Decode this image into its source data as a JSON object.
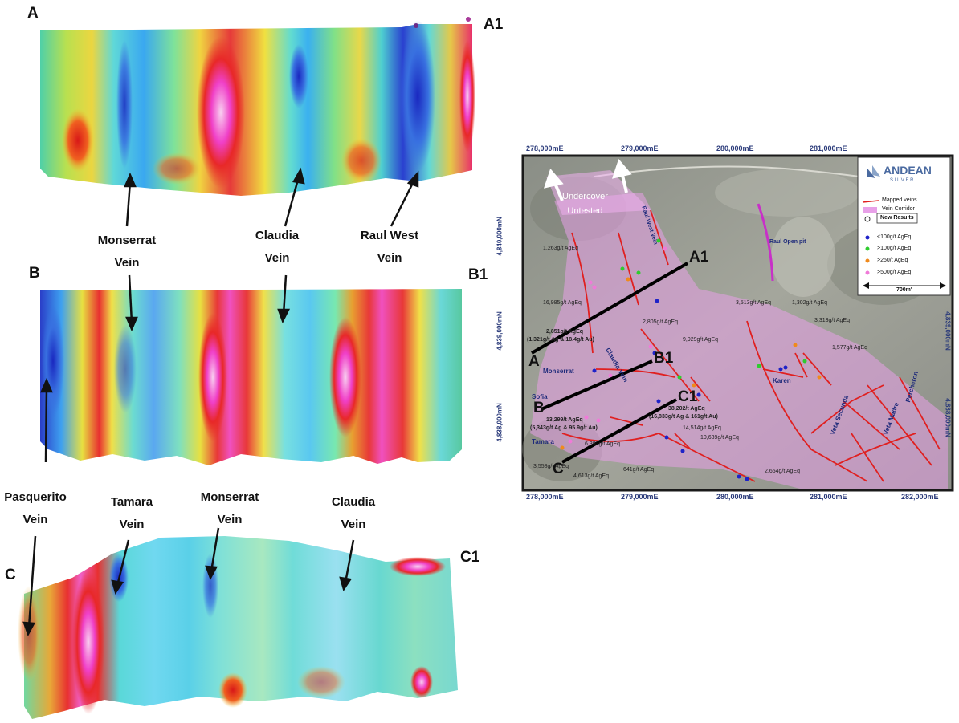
{
  "sections": {
    "A": {
      "start": "A",
      "end": "A1"
    },
    "B": {
      "start": "B",
      "end": "B1"
    },
    "C": {
      "start": "C",
      "end": "C1"
    }
  },
  "vein_labels": {
    "monserrat_a": [
      "Monserrat",
      "Vein"
    ],
    "claudia_a": [
      "Claudia",
      "Vein"
    ],
    "raul_west_a": [
      "Raul West",
      "Vein"
    ],
    "pasquerito_c": [
      "Pasquerito",
      "Vein"
    ],
    "tamara_c": [
      "Tamara",
      "Vein"
    ],
    "monserrat_c": [
      "Monserrat",
      "Vein"
    ],
    "claudia_c": [
      "Claudia",
      "Vein"
    ]
  },
  "map": {
    "logo_main": "ANDEAN",
    "logo_sub": "S I L V E R",
    "top_eastings": [
      "278,000mE",
      "279,000mE",
      "280,000mE",
      "281,000mE"
    ],
    "bottom_eastings": [
      "278,000mE",
      "279,000mE",
      "280,000mE",
      "281,000mE",
      "282,000mE"
    ],
    "left_northings": [
      "4,840,000mN",
      "4,839,000mN",
      "4,838,000mN"
    ],
    "right_northings": [
      "4,839,000mN",
      "4,838,000mN"
    ],
    "undercover": [
      "Undercover",
      "Untested"
    ],
    "legend": {
      "mapped_veins": "Mapped veins",
      "vein_corridor": "Vein Corridor",
      "new_results": "New Results",
      "items": [
        {
          "label": "<100g/t AgEq",
          "color": "#1e22c8"
        },
        {
          "label": ">100g/t AgEq",
          "color": "#2ecc2e"
        },
        {
          "label": ">250/t AgEq",
          "color": "#f08a1c"
        },
        {
          "label": ">500g/t AgEq",
          "color": "#f07ad8"
        }
      ],
      "scale": "700m'"
    },
    "names": {
      "raul_west": "Raul West Vein",
      "raul_pit": "Raul Open pit",
      "monserrat": "Monserrat",
      "claudia": "Claudia Vein",
      "sofia": "Sofia",
      "tamara": "Tamara",
      "karen": "Karen",
      "veta_secunda": "Veta Secunda",
      "veta_madre": "Veta Madre",
      "percheron": "Percheron"
    },
    "assays": {
      "a1": "1,263g/t AgEq",
      "a2": "16,985g/t AgEq",
      "a3a": "2,851g/t AgEq",
      "a3b": "(1,321g/t Ag & 18.4g/t Au)",
      "a4": "2,805g/t AgEq",
      "a5": "9,929g/t AgEq",
      "a6a": "13,299/t AgEq",
      "a6b": "(5,343g/t Ag & 95.9g/t Au)",
      "a7a": "38,202/t AgEq",
      "a7b": "(16,833g/t Ag & 161g/t Au)",
      "a8": "14,514g/t AgEq",
      "a9": "10,639g/t AgEq",
      "a10": "6,392g/t AgEq",
      "a11": "641g/t AgEq",
      "a12": "4,613g/t AgEq",
      "a13": "3,558g/t AgEq",
      "a14": "2,654g/t AgEq",
      "a15": "3,513g/t AgEq",
      "a16": "1,302g/t AgEq",
      "a17": "3,313g/t AgEq",
      "a18": "1,577g/t AgEq"
    }
  }
}
